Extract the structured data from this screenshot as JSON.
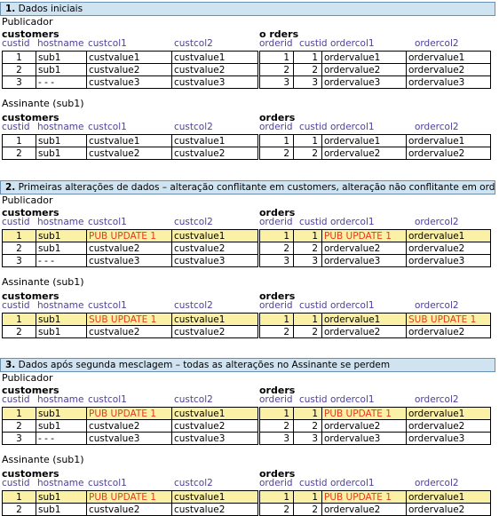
{
  "colors": {
    "header_bg": "#cfe3f1",
    "column_header": "#4f3f9c",
    "highlight_row": "#fbf1a6",
    "update_text": "#e8391c"
  },
  "cust_columns": [
    "custid",
    "hostname",
    "custcol1",
    "custcol2"
  ],
  "order_columns": [
    "orderid",
    "custid",
    "ordercol1",
    "ordercol2"
  ],
  "sections": [
    {
      "number": "1.",
      "title": " Dados iniciais",
      "publisher_label": "Publicador",
      "subscriber_label": "Assinante (sub1)",
      "pub_customers_title": "customers",
      "pub_orders_title": "o rders",
      "sub_customers_title": "customers",
      "sub_orders_title": "orders",
      "pub_customers": [
        [
          "1",
          "sub1",
          "custvalue1",
          "custvalue1"
        ],
        [
          "2",
          "sub1",
          "custvalue2",
          "custvalue2"
        ],
        [
          "3",
          "- - -",
          "custvalue3",
          "custvalue3"
        ]
      ],
      "pub_orders": [
        [
          "1",
          "1",
          "ordervalue1",
          "ordervalue1"
        ],
        [
          "2",
          "2",
          "ordervalue2",
          "ordervalue2"
        ],
        [
          "3",
          "3",
          "ordervalue3",
          "ordervalue3"
        ]
      ],
      "sub_customers": [
        [
          "1",
          "sub1",
          "custvalue1",
          "custvalue1"
        ],
        [
          "2",
          "sub1",
          "custvalue2",
          "custvalue2"
        ]
      ],
      "sub_orders": [
        [
          "1",
          "1",
          "ordervalue1",
          "ordervalue1"
        ],
        [
          "2",
          "2",
          "ordervalue2",
          "ordervalue2"
        ]
      ]
    },
    {
      "number": "2.",
      "title": " Primeiras alterações de dados – alteração conflitante em customers, alteração não conflitante em orders",
      "publisher_label": "Publicador",
      "subscriber_label": "Assinante (sub1)",
      "pub_customers_title": "customers",
      "pub_orders_title": "orders",
      "sub_customers_title": "customers",
      "sub_orders_title": "orders",
      "pub_customers": [
        [
          "1",
          "sub1",
          "PUB UPDATE 1",
          "custvalue1"
        ],
        [
          "2",
          "sub1",
          "custvalue2",
          "custvalue2"
        ],
        [
          "3",
          "- - -",
          "custvalue3",
          "custvalue3"
        ]
      ],
      "pub_orders": [
        [
          "1",
          "1",
          "PUB UPDATE 1",
          "ordervalue1"
        ],
        [
          "2",
          "2",
          "ordervalue2",
          "ordervalue2"
        ],
        [
          "3",
          "3",
          "ordervalue3",
          "ordervalue3"
        ]
      ],
      "sub_customers": [
        [
          "1",
          "sub1",
          "SUB UPDATE 1",
          "custvalue1"
        ],
        [
          "2",
          "sub1",
          "custvalue2",
          "custvalue2"
        ]
      ],
      "sub_orders": [
        [
          "1",
          "1",
          "ordervalue1",
          "SUB UPDATE 1"
        ],
        [
          "2",
          "2",
          "ordervalue2",
          "ordervalue2"
        ]
      ]
    },
    {
      "number": "3.",
      "title": " Dados após segunda mesclagem – todas as alterações no Assinante se perdem",
      "publisher_label": "Publicador",
      "subscriber_label": "Assinante (sub1)",
      "pub_customers_title": "customers",
      "pub_orders_title": "orders",
      "sub_customers_title": "customers",
      "sub_orders_title": "orders",
      "pub_customers": [
        [
          "1",
          "sub1",
          "PUB UPDATE 1",
          "custvalue1"
        ],
        [
          "2",
          "sub1",
          "custvalue2",
          "custvalue2"
        ],
        [
          "3",
          "- - -",
          "custvalue3",
          "custvalue3"
        ]
      ],
      "pub_orders": [
        [
          "1",
          "1",
          "PUB UPDATE 1",
          "ordervalue1"
        ],
        [
          "2",
          "2",
          "ordervalue2",
          "ordervalue2"
        ],
        [
          "3",
          "3",
          "ordervalue3",
          "ordervalue3"
        ]
      ],
      "sub_customers": [
        [
          "1",
          "sub1",
          "PUB UPDATE 1",
          "custvalue1"
        ],
        [
          "2",
          "sub1",
          "custvalue2",
          "custvalue2"
        ]
      ],
      "sub_orders": [
        [
          "1",
          "1",
          "PUB UPDATE 1",
          "ordervalue1"
        ],
        [
          "2",
          "2",
          "ordervalue2",
          "ordervalue2"
        ]
      ]
    }
  ]
}
